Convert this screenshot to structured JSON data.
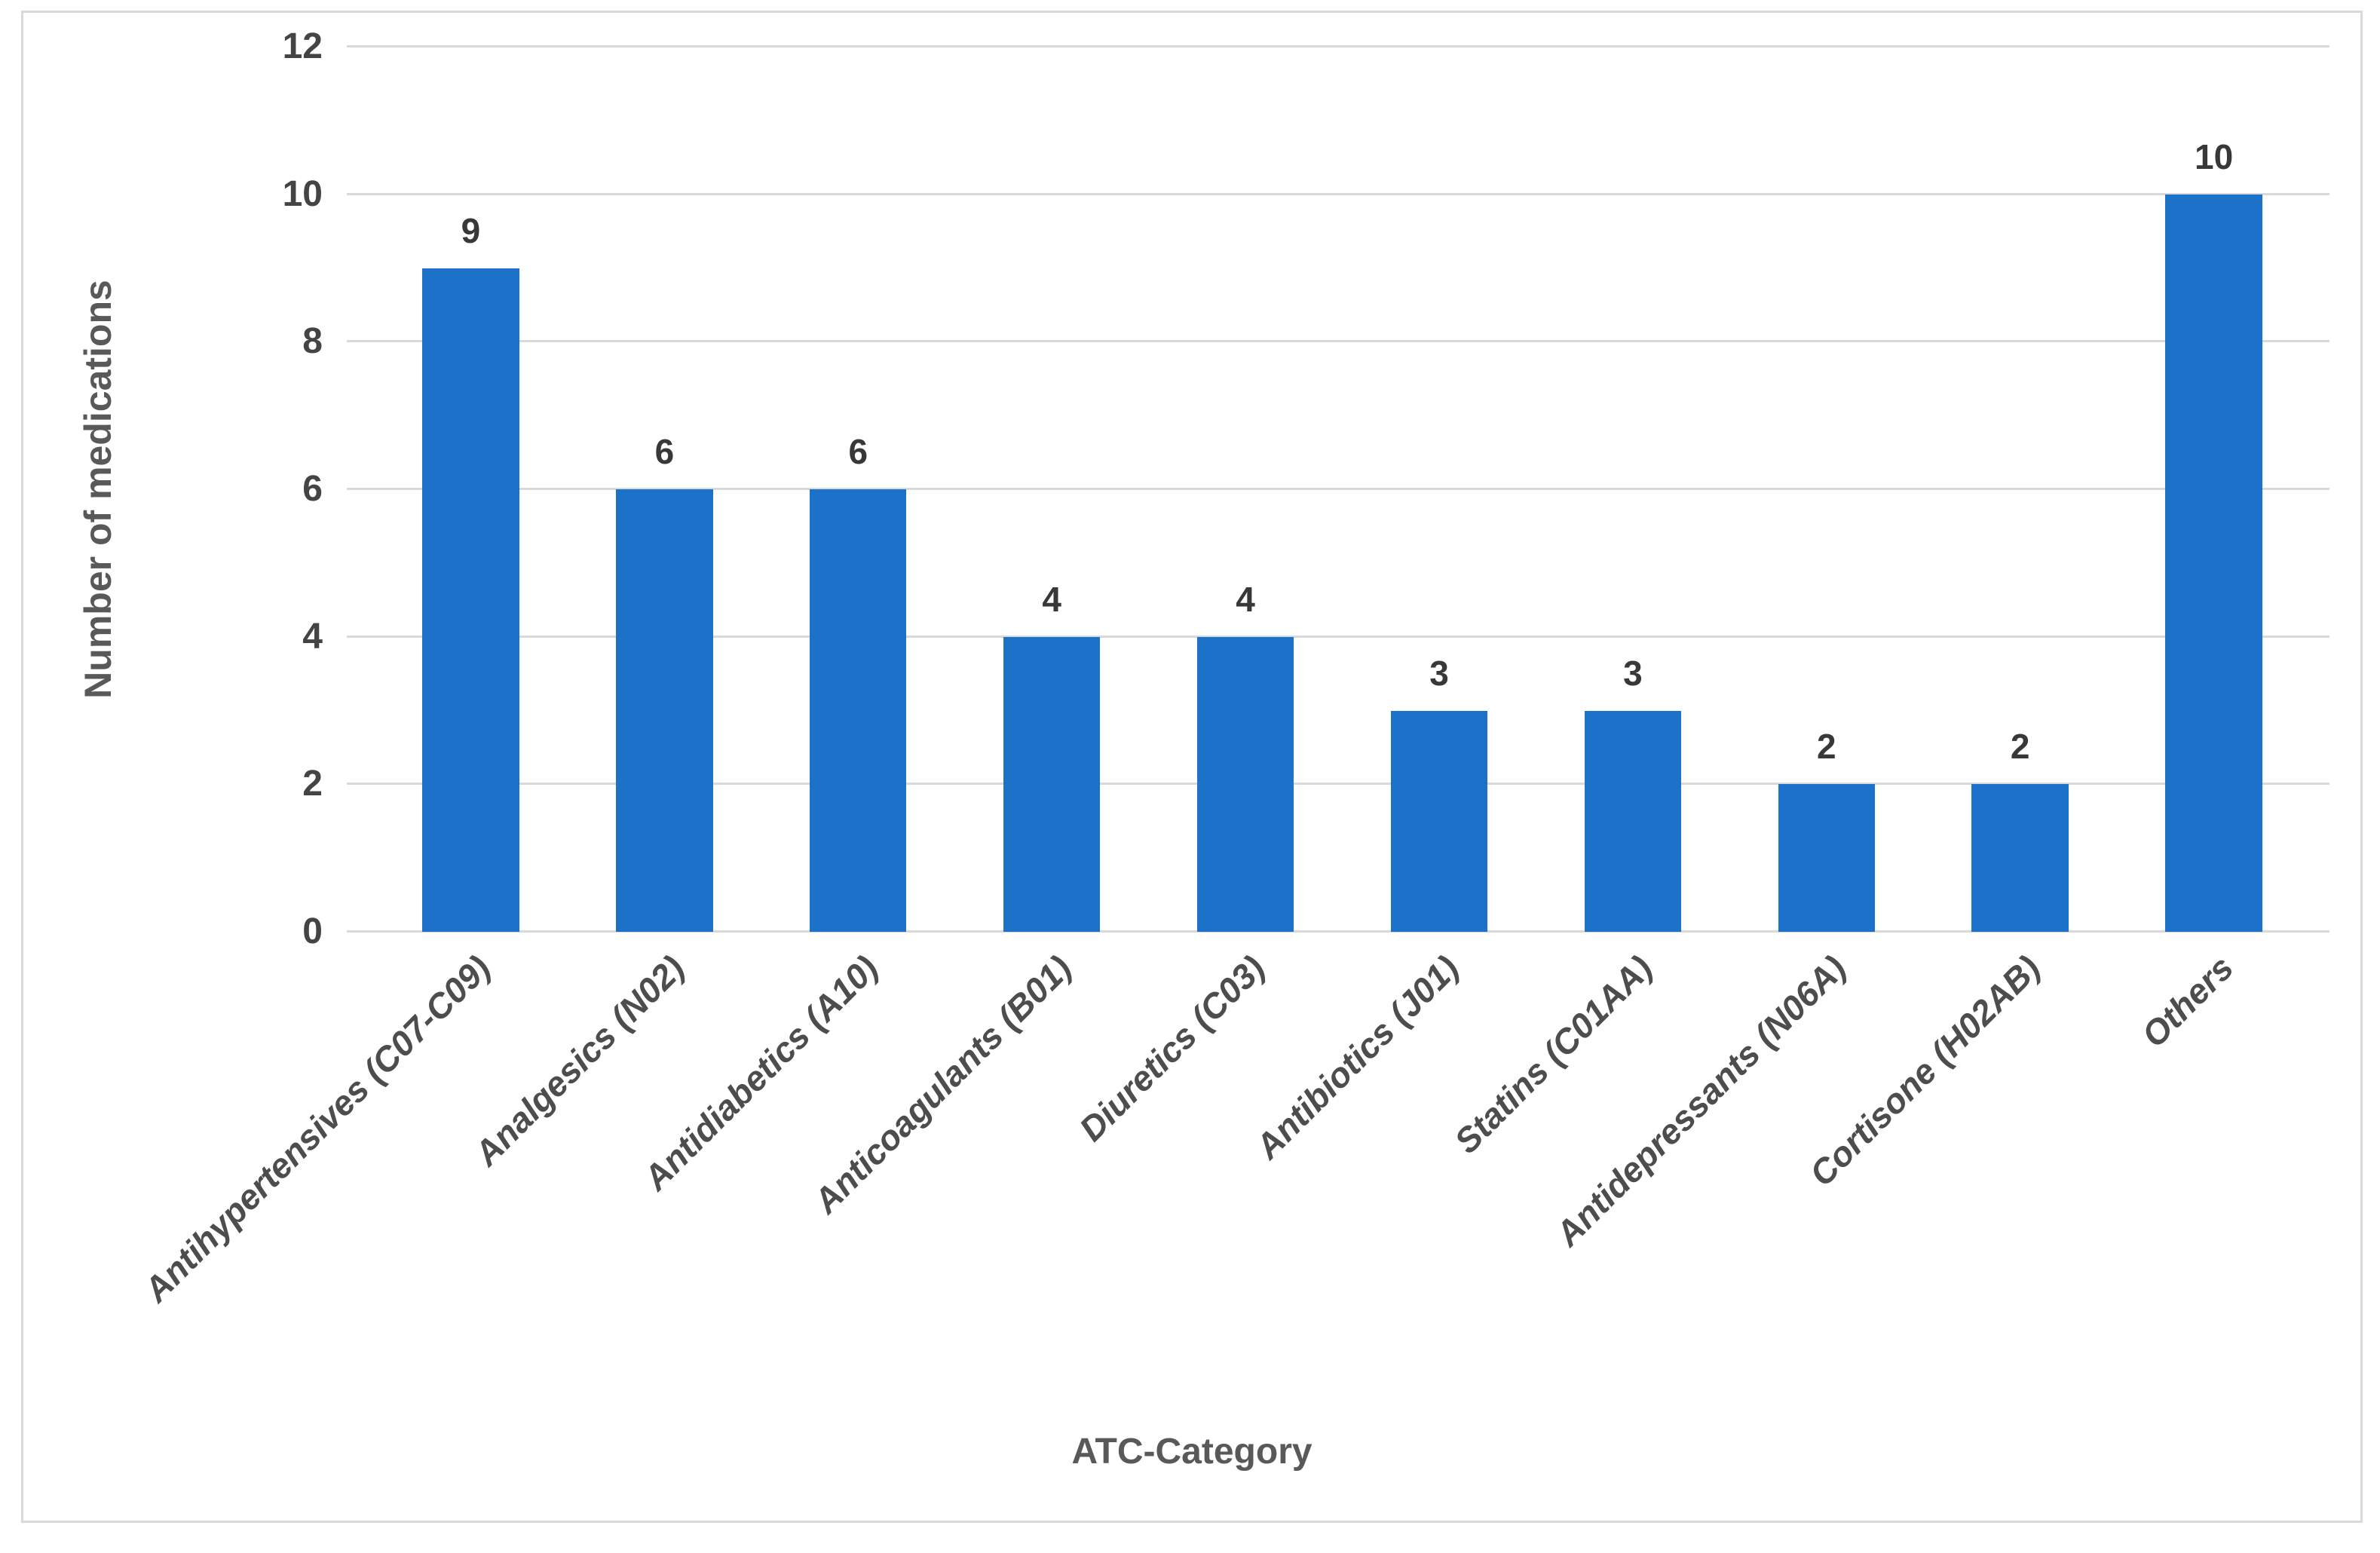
{
  "chart_data": {
    "type": "bar",
    "title": "",
    "categories": [
      "Antihypertensives (C07-C09)",
      "Analgesics (N02)",
      "Antidiabetics (A10)",
      "Anticoagulants (B01)",
      "Diuretics (C03)",
      "Antibiotics (J01)",
      "Statins (C01AA)",
      "Antidepressants (N06A)",
      "Cortisone (H02AB)",
      "Others"
    ],
    "values": [
      9,
      6,
      6,
      4,
      4,
      3,
      3,
      2,
      2,
      10
    ],
    "xlabel": "ATC-Category",
    "ylabel": "Number of medications",
    "ylim": [
      0,
      12
    ],
    "yticks": [
      0,
      2,
      4,
      6,
      8,
      10,
      12
    ],
    "grid": true,
    "legend": false,
    "data_labels": true,
    "bar_orientation": "vertical",
    "category_label_rotation_deg": -45
  },
  "colors": {
    "bar": "#1B72C8",
    "gridline": "#D9D9D9",
    "axis_line": "#D9D9D9",
    "frame_border": "#D9D9D9",
    "tick_text": "#444444",
    "value_text": "#383838",
    "category_text": "#4D4D4D",
    "axis_title_text": "#595959",
    "background": "#FFFFFF"
  }
}
